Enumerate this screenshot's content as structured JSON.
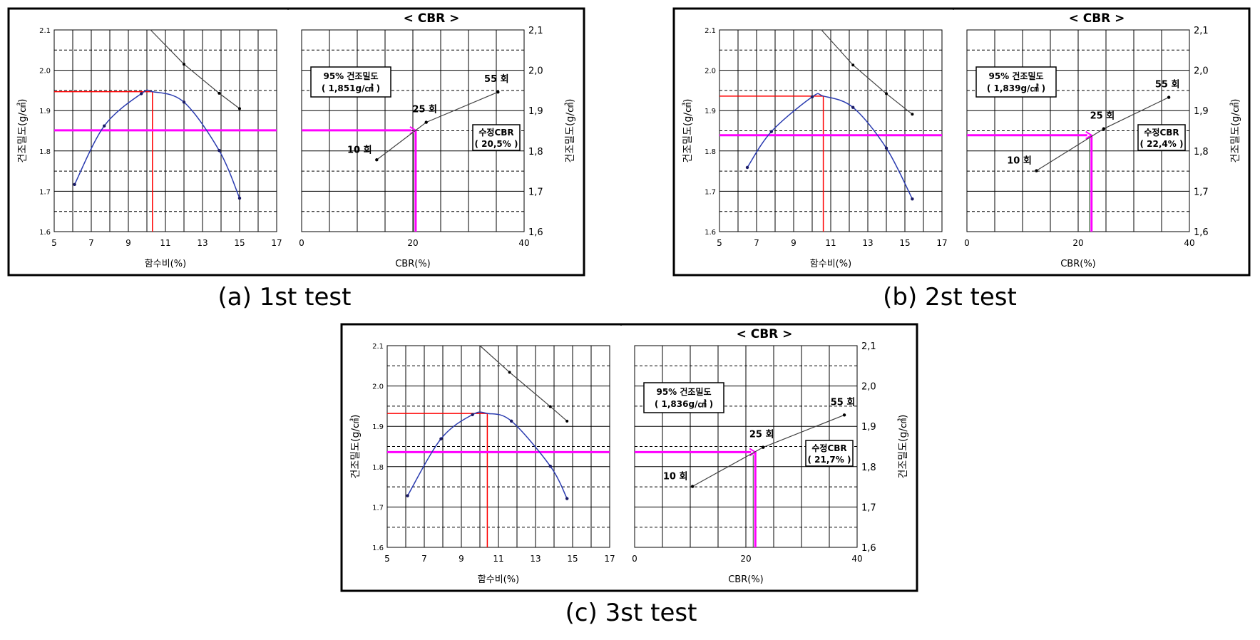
{
  "panel_title": "< CBR >",
  "left_xlabel": "함수비(%)",
  "right_xlabel": "CBR(%)",
  "ylabel": "건조밀도(g/㎤)",
  "label_95": "95% 건조밀도",
  "label_mod": "수정CBR",
  "blow_labels": [
    "10 회",
    "25 회",
    "55 회"
  ],
  "colors": {
    "curve": "#2a3bb0",
    "red": "#ff0000",
    "magenta": "#ff00ff",
    "line": "#404040",
    "frame": "#000000"
  },
  "chart_data": [
    {
      "type": "line",
      "caption": "(a) 1st test",
      "density_label": "( 1,851g/㎤ )",
      "mod_value_label": "( 20,5% )",
      "compaction": {
        "xlabel": "함수비(%)",
        "ylabel": "건조밀도(g/㎤)",
        "xlim": [
          5,
          17
        ],
        "ylim": [
          1.6,
          2.1
        ],
        "xticks": [
          5,
          7,
          9,
          11,
          13,
          15,
          17
        ],
        "yticks": [
          "1.6",
          "1.7",
          "1.8",
          "1.9",
          "2.0",
          "2.1"
        ],
        "points": [
          [
            6.1,
            1.717
          ],
          [
            7.7,
            1.862
          ],
          [
            9.7,
            1.942
          ],
          [
            12.0,
            1.921
          ],
          [
            13.9,
            1.801
          ],
          [
            15.0,
            1.683
          ]
        ],
        "peak": [
          10.3,
          1.947
        ],
        "zav": [
          [
            10.2,
            2.1
          ],
          [
            12.0,
            2.015
          ],
          [
            13.9,
            1.943
          ],
          [
            15.0,
            1.905
          ]
        ],
        "omc": 10.3,
        "max_density": 1.947,
        "target_density": 1.851
      },
      "cbr": {
        "xlabel": "CBR(%)",
        "ylabel": "건조밀도(g/㎤)",
        "xlim": [
          0,
          40
        ],
        "ylim": [
          1.6,
          2.1
        ],
        "xticks": [
          0,
          20,
          40
        ],
        "yticks": [
          "1,6",
          "1,7",
          "1,8",
          "1,9",
          "2,0",
          "2,1"
        ],
        "points": [
          [
            13.5,
            1.778
          ],
          [
            22.4,
            1.871
          ],
          [
            35.3,
            1.946
          ]
        ],
        "modified_cbr": 20.5,
        "target_density": 1.851
      }
    },
    {
      "type": "line",
      "caption": "(b) 2st test",
      "density_label": "( 1,839g/㎤ )",
      "mod_value_label": "( 22,4% )",
      "compaction": {
        "xlabel": "함수비(%)",
        "ylabel": "건조밀도(g/㎤)",
        "xlim": [
          5,
          17
        ],
        "ylim": [
          1.6,
          2.1
        ],
        "xticks": [
          5,
          7,
          9,
          11,
          13,
          15,
          17
        ],
        "yticks": [
          "1.6",
          "1.7",
          "1.8",
          "1.9",
          "2.0",
          "2.1"
        ],
        "points": [
          [
            6.5,
            1.759
          ],
          [
            7.8,
            1.848
          ],
          [
            10.0,
            1.934
          ],
          [
            12.2,
            1.908
          ],
          [
            14.0,
            1.807
          ],
          [
            15.4,
            1.681
          ]
        ],
        "peak": [
          10.6,
          1.936
        ],
        "zav": [
          [
            10.5,
            2.1
          ],
          [
            12.2,
            2.013
          ],
          [
            14.0,
            1.942
          ],
          [
            15.4,
            1.891
          ]
        ],
        "omc": 10.6,
        "max_density": 1.936,
        "target_density": 1.839
      },
      "cbr": {
        "xlabel": "CBR(%)",
        "ylabel": "건조밀도(g/㎤)",
        "xlim": [
          0,
          40
        ],
        "ylim": [
          1.6,
          2.1
        ],
        "xticks": [
          0,
          20,
          40
        ],
        "yticks": [
          "1,6",
          "1,7",
          "1,8",
          "1,9",
          "2,0",
          "2,1"
        ],
        "points": [
          [
            12.5,
            1.751
          ],
          [
            24.6,
            1.855
          ],
          [
            36.3,
            1.933
          ]
        ],
        "modified_cbr": 22.4,
        "target_density": 1.839
      }
    },
    {
      "type": "line",
      "caption": "(c) 3st test",
      "density_label": "( 1,836g/㎤ )",
      "mod_value_label": "( 21,7% )",
      "compaction": {
        "xlabel": "함수비(%)",
        "ylabel": "건조밀도(g/㎤)",
        "xlim": [
          5,
          17
        ],
        "ylim": [
          1.6,
          2.1
        ],
        "xticks": [
          5,
          7,
          9,
          11,
          13,
          15,
          17
        ],
        "yticks": [
          "1.6",
          "1.7",
          "1.8",
          "1.9",
          "2.0",
          "2.1"
        ],
        "points": [
          [
            6.1,
            1.728
          ],
          [
            7.9,
            1.869
          ],
          [
            9.6,
            1.929
          ],
          [
            11.7,
            1.913
          ],
          [
            13.8,
            1.801
          ],
          [
            14.7,
            1.721
          ]
        ],
        "peak": [
          10.4,
          1.932
        ],
        "zav": [
          [
            10.0,
            2.1
          ],
          [
            11.6,
            2.034
          ],
          [
            13.8,
            1.949
          ],
          [
            14.7,
            1.913
          ]
        ],
        "omc": 10.4,
        "max_density": 1.932,
        "target_density": 1.836
      },
      "cbr": {
        "xlabel": "CBR(%)",
        "ylabel": "건조밀도(g/㎤)",
        "xlim": [
          0,
          40
        ],
        "ylim": [
          1.6,
          2.1
        ],
        "xticks": [
          0,
          20,
          40
        ],
        "yticks": [
          "1,6",
          "1,7",
          "1,8",
          "1,9",
          "2,0",
          "2,1"
        ],
        "points": [
          [
            10.4,
            1.751
          ],
          [
            23.1,
            1.848
          ],
          [
            37.7,
            1.928
          ]
        ],
        "modified_cbr": 21.7,
        "target_density": 1.836
      }
    }
  ]
}
